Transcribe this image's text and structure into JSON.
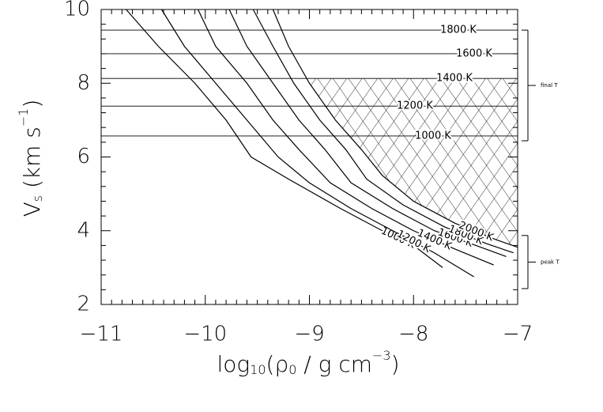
{
  "chart_data": {
    "type": "line",
    "xlabel": [
      "log",
      "10",
      "(ρ",
      "0",
      " / g cm",
      "−3",
      ")"
    ],
    "ylabel": [
      "V",
      "s",
      " (km s",
      "−1",
      ")"
    ],
    "xlim": [
      -11,
      -7
    ],
    "ylim": [
      2,
      10
    ],
    "xticks": [
      {
        "value": -11,
        "label": "−11"
      },
      {
        "value": -10,
        "label": "−10"
      },
      {
        "value": -9,
        "label": "−9"
      },
      {
        "value": -8,
        "label": "−8"
      },
      {
        "value": -7,
        "label": "−7"
      }
    ],
    "yticks": [
      2,
      4,
      6,
      8,
      10
    ],
    "xminor": 10,
    "yminor": 5,
    "color": "#000000",
    "hlines": [
      {
        "name": "1800 K",
        "value": 9.44
      },
      {
        "name": "1600 K",
        "value": 8.8
      },
      {
        "name": "1400 K",
        "value": 8.13
      },
      {
        "name": "1200 K",
        "value": 7.38
      },
      {
        "name": "1000 K",
        "value": 6.57
      }
    ],
    "series": [
      {
        "name": "1000 K",
        "x": [
          -10.76,
          -10.45,
          -10.1,
          -9.8,
          -9.56,
          -9.2,
          -8.7,
          -8.3,
          -8.0,
          -7.72
        ],
        "values": [
          10,
          9.0,
          8.0,
          7.0,
          6.0,
          5.4,
          4.6,
          4.0,
          3.6,
          3.0
        ]
      },
      {
        "name": "1200 K",
        "x": [
          -10.42,
          -10.2,
          -9.9,
          -9.6,
          -9.3,
          -9.0,
          -8.6,
          -8.2,
          -7.8,
          -7.42
        ],
        "values": [
          10,
          9.0,
          8.0,
          7.0,
          6.0,
          5.3,
          4.6,
          4.0,
          3.4,
          2.75
        ]
      },
      {
        "name": "1400 K",
        "x": [
          -10.07,
          -9.9,
          -9.6,
          -9.35,
          -9.1,
          -8.8,
          -8.4,
          -8.0,
          -7.6,
          -7.23
        ],
        "values": [
          10,
          9.0,
          8.0,
          7.0,
          6.2,
          5.3,
          4.6,
          4.0,
          3.5,
          3.07
        ]
      },
      {
        "name": "1600 K",
        "x": [
          -9.77,
          -9.6,
          -9.35,
          -9.1,
          -8.85,
          -8.6,
          -8.2,
          -7.8,
          -7.4,
          -7.11
        ],
        "values": [
          10,
          9.0,
          8.0,
          7.0,
          6.2,
          5.3,
          4.6,
          4.0,
          3.6,
          3.3
        ]
      },
      {
        "name": "1800 K",
        "x": [
          -9.54,
          -9.35,
          -9.15,
          -8.9,
          -8.65,
          -8.45,
          -8.1,
          -7.7,
          -7.3,
          -7.04
        ],
        "values": [
          10,
          9.0,
          8.0,
          7.0,
          6.2,
          5.4,
          4.7,
          4.1,
          3.65,
          3.4
        ]
      },
      {
        "name": "2000 K",
        "x": [
          -9.35,
          -9.2,
          -9.0,
          -8.75,
          -8.5,
          -8.3,
          -8.0,
          -7.6,
          -7.2,
          -7.0
        ],
        "values": [
          10,
          9.0,
          8.0,
          7.0,
          6.2,
          5.5,
          4.8,
          4.2,
          3.75,
          3.55
        ]
      }
    ],
    "brackets": [
      {
        "label": "final T",
        "range": [
          9.44,
          6.44
        ]
      },
      {
        "label": "peak T",
        "range": [
          3.87,
          2.43
        ]
      }
    ]
  }
}
